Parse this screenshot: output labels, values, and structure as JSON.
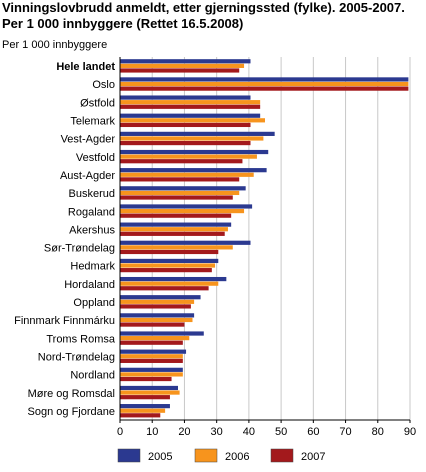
{
  "title_line1": "Vinningslovbrudd anmeldt, etter gjerningssted (fylke). 2005-2007.",
  "title_line2": "Per 1 000 innbyggere (Rettet 16.5.2008)",
  "chart_data": {
    "type": "bar",
    "orientation": "horizontal",
    "title": "Vinningslovbrudd anmeldt, etter gjerningssted (fylke). 2005-2007. Per 1 000 innbyggere (Rettet 16.5.2008)",
    "ylabel": "Per 1 000 innbyggere",
    "xlabel": "",
    "xlim": [
      0,
      90
    ],
    "xticks": [
      0,
      10,
      20,
      30,
      40,
      50,
      60,
      70,
      80,
      90
    ],
    "grid": true,
    "legend_position": "bottom",
    "categories": [
      "Hele landet",
      "Oslo",
      "Østfold",
      "Telemark",
      "Vest-Agder",
      "Vestfold",
      "Aust-Agder",
      "Buskerud",
      "Rogaland",
      "Akershus",
      "Sør-Trøndelag",
      "Hedmark",
      "Hordaland",
      "Oppland",
      "Finnmark Finnmárku",
      "Troms Romsa",
      "Nord-Trøndelag",
      "Nordland",
      "Møre og Romsdal",
      "Sogn og Fjordane"
    ],
    "bold_categories": [
      "Hele landet"
    ],
    "series": [
      {
        "name": "2005",
        "color": "#2b3990",
        "values": [
          40.5,
          89.5,
          40.5,
          43.5,
          48.0,
          46.0,
          45.5,
          39.0,
          41.0,
          34.5,
          40.5,
          30.5,
          33.0,
          25.0,
          23.0,
          26.0,
          20.5,
          19.5,
          18.0,
          15.5
        ]
      },
      {
        "name": "2006",
        "color": "#f7941d",
        "values": [
          38.5,
          89.5,
          43.5,
          45.0,
          44.5,
          42.5,
          41.5,
          37.0,
          38.5,
          33.5,
          35.0,
          29.5,
          30.5,
          23.0,
          22.5,
          21.5,
          19.5,
          19.5,
          18.5,
          14.0
        ]
      },
      {
        "name": "2007",
        "color": "#a3191c",
        "values": [
          37.0,
          89.5,
          43.5,
          40.5,
          40.5,
          38.0,
          37.0,
          35.0,
          34.5,
          32.5,
          30.5,
          28.5,
          27.5,
          22.0,
          20.0,
          19.5,
          19.5,
          16.0,
          15.5,
          12.5
        ]
      }
    ]
  }
}
